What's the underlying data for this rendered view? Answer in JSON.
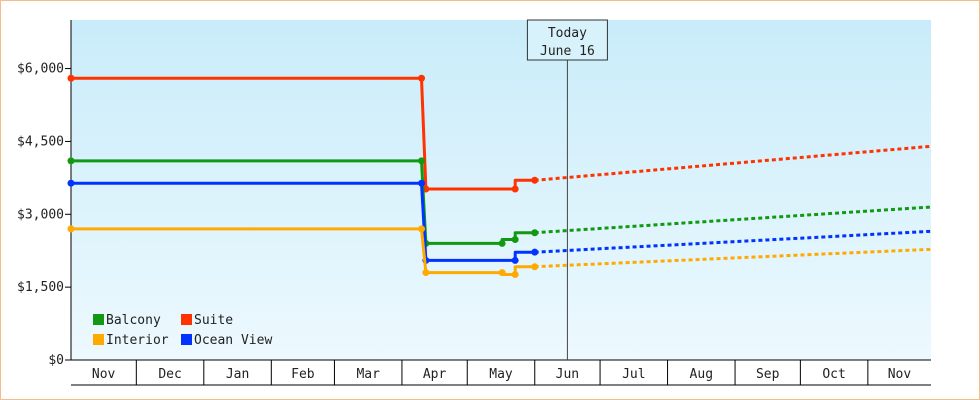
{
  "chart_data": {
    "type": "line",
    "title": "",
    "xlabel": "",
    "ylabel": "",
    "ylim": [
      0,
      7000
    ],
    "y_ticks": [
      0,
      1500,
      3000,
      4500,
      6000
    ],
    "y_tick_labels": [
      "$0",
      "$1,500",
      "$3,000",
      "$4,500",
      "$6,000"
    ],
    "x_range": [
      "2023-11-01",
      "2024-11-30"
    ],
    "x_month_labels": [
      "Nov",
      "Dec",
      "Jan",
      "Feb",
      "Mar",
      "Apr",
      "May",
      "Jun",
      "Jul",
      "Aug",
      "Sep",
      "Oct",
      "Nov"
    ],
    "grid": false,
    "legend_position": "bottom-left",
    "annotation": {
      "date": "2024-06-16",
      "line1": "Today",
      "line2": "June 16"
    },
    "series": [
      {
        "name": "Suite",
        "color": "#ff3300",
        "points": [
          [
            "2023-11-01",
            5800
          ],
          [
            "2024-04-10",
            5800
          ],
          [
            "2024-04-12",
            3520
          ],
          [
            "2024-05-23",
            3520
          ],
          [
            "2024-05-23",
            3700
          ],
          [
            "2024-06-01",
            3700
          ]
        ],
        "forecast": [
          [
            "2024-06-01",
            3700
          ],
          [
            "2024-11-30",
            4400
          ]
        ]
      },
      {
        "name": "Balcony",
        "color": "#119911",
        "points": [
          [
            "2023-11-01",
            4100
          ],
          [
            "2024-04-10",
            4100
          ],
          [
            "2024-04-12",
            2400
          ],
          [
            "2024-05-17",
            2400
          ],
          [
            "2024-05-17",
            2480
          ],
          [
            "2024-05-23",
            2480
          ],
          [
            "2024-05-23",
            2620
          ],
          [
            "2024-06-01",
            2620
          ]
        ],
        "forecast": [
          [
            "2024-06-01",
            2620
          ],
          [
            "2024-11-30",
            3150
          ]
        ]
      },
      {
        "name": "Ocean View",
        "color": "#0033ff",
        "points": [
          [
            "2023-11-01",
            3640
          ],
          [
            "2024-04-10",
            3640
          ],
          [
            "2024-04-12",
            2050
          ],
          [
            "2024-05-23",
            2050
          ],
          [
            "2024-05-23",
            2220
          ],
          [
            "2024-06-01",
            2220
          ]
        ],
        "forecast": [
          [
            "2024-06-01",
            2220
          ],
          [
            "2024-11-30",
            2650
          ]
        ]
      },
      {
        "name": "Interior",
        "color": "#ffaa00",
        "points": [
          [
            "2023-11-01",
            2700
          ],
          [
            "2024-04-10",
            2700
          ],
          [
            "2024-04-12",
            1800
          ],
          [
            "2024-05-17",
            1800
          ],
          [
            "2024-05-17",
            1760
          ],
          [
            "2024-05-23",
            1760
          ],
          [
            "2024-05-23",
            1920
          ],
          [
            "2024-06-01",
            1920
          ]
        ],
        "forecast": [
          [
            "2024-06-01",
            1920
          ],
          [
            "2024-11-30",
            2280
          ]
        ]
      }
    ],
    "legend": [
      {
        "name": "Balcony",
        "color": "#119911"
      },
      {
        "name": "Suite",
        "color": "#ff3300"
      },
      {
        "name": "Interior",
        "color": "#ffaa00"
      },
      {
        "name": "Ocean View",
        "color": "#0033ff"
      }
    ]
  }
}
